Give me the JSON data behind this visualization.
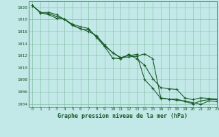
{
  "title": "Graphe pression niveau de la mer (hPa)",
  "background_color": "#c3e8e8",
  "grid_color": "#7ab89a",
  "line_color": "#1a5c2a",
  "xlim": [
    -0.5,
    23
  ],
  "ylim": [
    1003.5,
    1021.0
  ],
  "yticks": [
    1004,
    1006,
    1008,
    1010,
    1012,
    1014,
    1016,
    1018,
    1020
  ],
  "xticks": [
    0,
    1,
    2,
    3,
    4,
    5,
    6,
    7,
    8,
    9,
    10,
    11,
    12,
    13,
    14,
    15,
    16,
    17,
    18,
    19,
    20,
    21,
    22,
    23
  ],
  "series": [
    [
      1020.3,
      1019.1,
      1019.2,
      1018.8,
      1018.0,
      1017.2,
      1016.8,
      1016.5,
      1015.0,
      1013.5,
      1011.6,
      1011.5,
      1012.2,
      1011.5,
      1010.4,
      1008.2,
      1006.7,
      1006.5,
      1006.4,
      1005.0,
      1004.7,
      1005.0,
      1004.9,
      1004.8
    ],
    [
      1020.3,
      1019.1,
      1018.8,
      1018.2,
      1018.1,
      1017.1,
      1016.4,
      1016.3,
      1015.2,
      1013.6,
      1012.5,
      1011.7,
      1012.0,
      1012.2,
      1008.0,
      1006.6,
      1004.9,
      1004.8,
      1004.8,
      1004.4,
      1004.0,
      1004.5,
      1004.7,
      1004.7
    ],
    [
      1020.3,
      1019.2,
      1019.0,
      1018.5,
      1018.0,
      1017.0,
      1016.5,
      1016.0,
      1015.3,
      1013.8,
      1012.5,
      1011.6,
      1011.8,
      1011.9,
      1012.3,
      1011.5,
      1005.0,
      1004.8,
      1004.6,
      1004.5,
      1004.2,
      1003.9,
      1004.5,
      1004.4
    ]
  ]
}
